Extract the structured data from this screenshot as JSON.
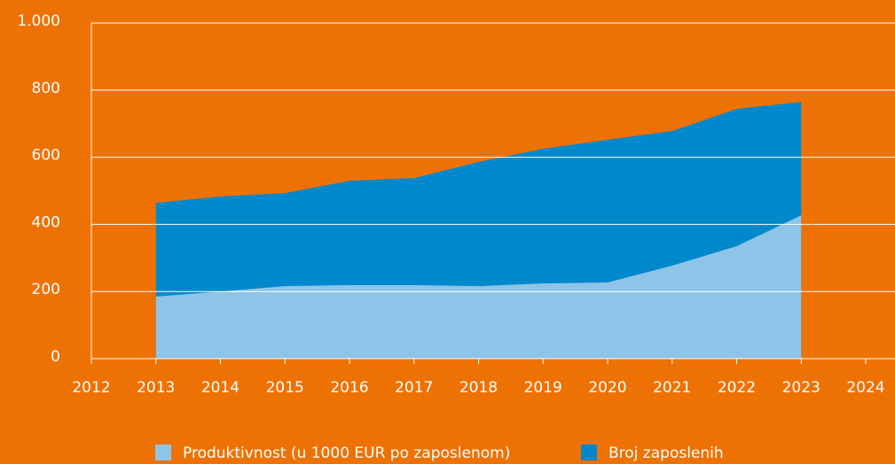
{
  "chart_data": {
    "type": "area",
    "x": [
      2013,
      2014,
      2015,
      2016,
      2017,
      2018,
      2019,
      2020,
      2021,
      2022,
      2023
    ],
    "series": [
      {
        "name": "Produktivnost (u 1000 EUR po zaposlenom)",
        "color": "#8DC4E8",
        "values": [
          185,
          200,
          216,
          219,
          219,
          216,
          224,
          227,
          277,
          335,
          427
        ]
      },
      {
        "name": "Broj zaposlenih",
        "color": "#0088CC",
        "values": [
          464,
          483,
          493,
          530,
          538,
          586,
          625,
          652,
          678,
          744,
          765
        ]
      }
    ],
    "xlim": [
      2012,
      2024
    ],
    "xticks": [
      2012,
      2013,
      2014,
      2015,
      2016,
      2017,
      2018,
      2019,
      2020,
      2021,
      2022,
      2023,
      2024
    ],
    "ylim": [
      0,
      1000
    ],
    "yticks": [
      0,
      200,
      400,
      600,
      800,
      {
        "value": 1000,
        "label": "1.000"
      }
    ],
    "grid": true,
    "legend": "bottom"
  }
}
